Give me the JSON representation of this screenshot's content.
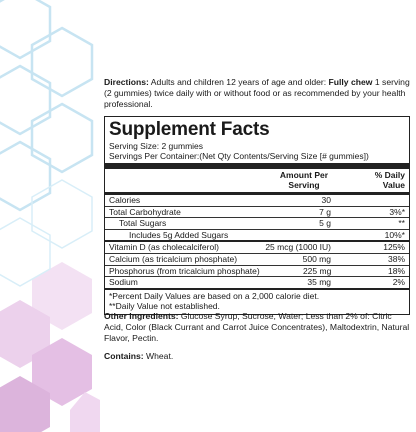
{
  "directions": {
    "label": "Directions:",
    "text1": " Adults and children 12 years of age and older: ",
    "bold": "Fully chew",
    "text2": " 1 serving (2 gummies) twice daily with or without food or as recommended by your health professional."
  },
  "facts": {
    "title": "Supplement Facts",
    "serving_size": "Serving Size: 2 gummies",
    "servings_per_container": "Servings Per Container:(Net Qty Contents/Serving Size [# gummies])",
    "header": {
      "amount_line1": "Amount Per",
      "amount_line2": "Serving",
      "dv_line1": "% Daily",
      "dv_line2": "Value"
    },
    "rows": [
      {
        "name": "Calories",
        "amount": "30",
        "dv": ""
      },
      {
        "name": "Total Carbohydrate",
        "amount": "7 g",
        "dv": "3%*"
      },
      {
        "name": "Total Sugars",
        "amount": "5 g",
        "dv": "**"
      },
      {
        "name": "Includes 5g Added Sugars",
        "amount": "",
        "dv": "10%*"
      },
      {
        "name": "Vitamin D (as cholecalciferol)",
        "amount": "25 mcg (1000 IU)",
        "dv": "125%"
      },
      {
        "name": "Calcium (as tricalcium phosphate)",
        "amount": "500 mg",
        "dv": "38%"
      },
      {
        "name": "Phosphorus (from tricalcium phosphate)",
        "amount": "225 mg",
        "dv": "18%"
      },
      {
        "name": "Sodium",
        "amount": "35 mg",
        "dv": "2%"
      }
    ],
    "footnote1": "*Percent Daily Values are based on a 2,000 calorie diet.",
    "footnote2": "**Daily Value not established."
  },
  "other_ingredients": {
    "label": "Other Ingredients:",
    "text": " Glucose Syrup, Sucrose, Water; Less than 2% of: Citric Acid, Color (Black Currant and Carrot Juice Concentrates), Maltodextrin, Natural Flavor, Pectin."
  },
  "contains": {
    "label": "Contains:",
    "text": " Wheat."
  },
  "colors": {
    "hex_outline_top": "#bfe0f0",
    "hex_fill_bottom": "#e6c2e6",
    "hex_fill_light": "#f2dcf2"
  }
}
